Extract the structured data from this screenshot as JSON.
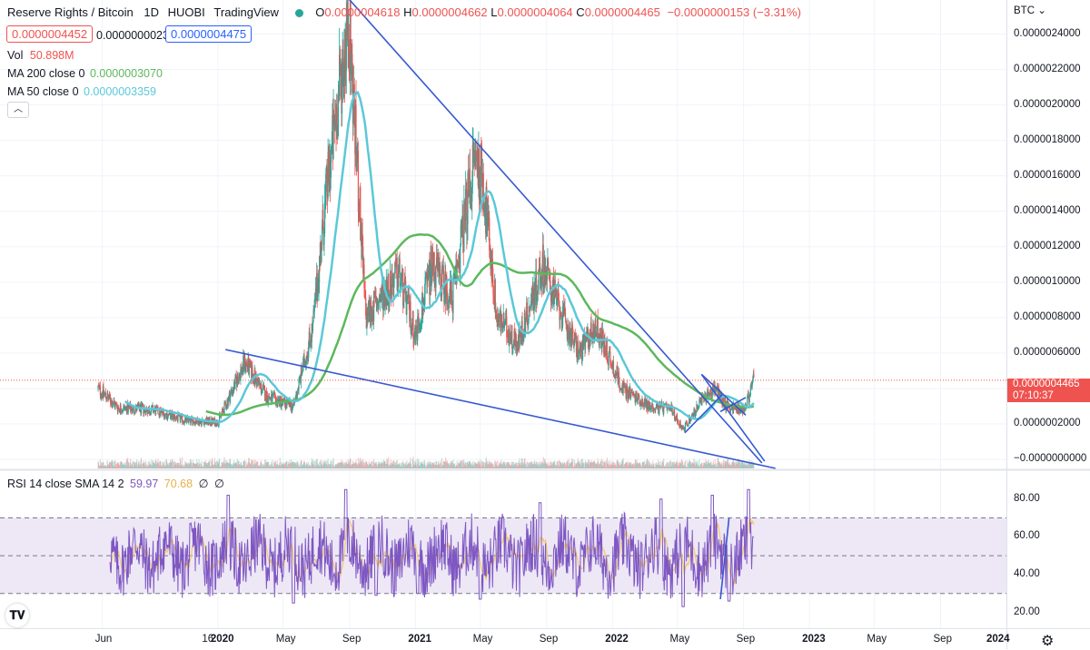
{
  "header": {
    "symbol": "Reserve Rights / Bitcoin",
    "interval": "1D",
    "exchange": "HUOBI",
    "source": "TradingView",
    "o_label": "O",
    "o_value": "0.0000004618",
    "h_label": "H",
    "h_value": "0.0000004662",
    "l_label": "L",
    "l_value": "0.0000004064",
    "c_label": "C",
    "c_value": "0.0000004465",
    "change": "−0.0000000153 (−3.31%)"
  },
  "price_boxes": {
    "bid": "0.0000004452",
    "spread": "0.0000000023",
    "ask": "0.0000004475"
  },
  "indicators": {
    "vol_label": "Vol",
    "vol_value": "50.898M",
    "ma200_label": "MA 200 close 0",
    "ma200_value": "0.0000003070",
    "ma50_label": "MA 50 close 0",
    "ma50_value": "0.0000003359",
    "rsi_label": "RSI 14 close SMA 14 2",
    "rsi_value": "59.97",
    "rsi_sma_value": "70.68",
    "rsi_extra1": "∅",
    "rsi_extra2": "∅"
  },
  "price_scale": {
    "currency": "BTC",
    "ticks": [
      "0.0000024000",
      "0.0000022000",
      "0.0000020000",
      "0.0000018000",
      "0.0000016000",
      "0.0000014000",
      "0.0000012000",
      "0.0000010000",
      "0.0000008000",
      "0.0000006000",
      "0.0000004000",
      "0.0000002000",
      "−0.0000000000"
    ],
    "last_price": "0.0000004465",
    "countdown": "07:10:37"
  },
  "rsi_scale": {
    "ticks": [
      "80.00",
      "60.00",
      "40.00",
      "20.00"
    ]
  },
  "time_axis": {
    "labels": [
      "Jun",
      "16",
      "2020",
      "May",
      "Sep",
      "2021",
      "May",
      "Sep",
      "2022",
      "May",
      "Sep",
      "2023",
      "May",
      "Sep",
      "2024"
    ]
  },
  "colors": {
    "up": "#26a69a",
    "down": "#ef5350",
    "ma200": "#5cb85c",
    "ma50": "#5bc8d8",
    "trendline": "#3559d1",
    "rsi": "#7e57c2",
    "rsi_sma": "#f5c86b",
    "rsi_band": "#ede7f6"
  },
  "chart_data": [
    {
      "type": "candlestick",
      "title": "Reserve Rights / Bitcoin",
      "ylim": [
        -2e-08,
        2.5e-06
      ],
      "x_range": [
        "2019-05-24",
        "2024-01-01"
      ],
      "close_path": [
        [
          "2019-05-24",
          4e-07
        ],
        [
          "2019-07-01",
          2.9e-07
        ],
        [
          "2019-09-01",
          2.8e-07
        ],
        [
          "2019-11-01",
          2.2e-07
        ],
        [
          "2020-01-01",
          2.1e-07
        ],
        [
          "2020-02-20",
          5.5e-07
        ],
        [
          "2020-04-01",
          3.5e-07
        ],
        [
          "2020-05-20",
          3e-07
        ],
        [
          "2020-06-25",
          7.5e-07
        ],
        [
          "2020-07-20",
          1.5e-06
        ],
        [
          "2020-08-30",
          2.5e-06
        ],
        [
          "2020-10-01",
          8e-07
        ],
        [
          "2020-12-01",
          1.05e-06
        ],
        [
          "2021-01-01",
          7e-07
        ],
        [
          "2021-02-01",
          1.1e-06
        ],
        [
          "2021-03-10",
          9e-07
        ],
        [
          "2021-04-20",
          1.7e-06
        ],
        [
          "2021-05-05",
          1.6e-06
        ],
        [
          "2021-06-01",
          8e-07
        ],
        [
          "2021-07-10",
          6.5e-07
        ],
        [
          "2021-08-25",
          1.1e-06
        ],
        [
          "2021-10-01",
          8e-07
        ],
        [
          "2021-11-01",
          6e-07
        ],
        [
          "2021-12-01",
          7.5e-07
        ],
        [
          "2022-01-20",
          4e-07
        ],
        [
          "2022-03-10",
          3e-07
        ],
        [
          "2022-04-20",
          2.8e-07
        ],
        [
          "2022-05-12",
          1.7e-07
        ],
        [
          "2022-06-20",
          3.5e-07
        ],
        [
          "2022-07-10",
          4e-07
        ],
        [
          "2022-08-01",
          3e-07
        ],
        [
          "2022-08-25",
          2.8e-07
        ],
        [
          "2022-09-05",
          3e-07
        ],
        [
          "2022-09-20",
          4.5e-07
        ]
      ],
      "ma50": {
        "name": "MA 50 close 0",
        "last": 3.359e-07
      },
      "ma200": {
        "name": "MA 200 close 0",
        "last": 3.07e-07
      },
      "trendlines": [
        {
          "from": [
            "2020-08-30",
            2.6e-06
          ],
          "to": [
            "2022-10-05",
            -2e-08
          ]
        },
        {
          "from": [
            "2020-01-15",
            6.2e-07
          ],
          "to": [
            "2022-10-30",
            -5e-08
          ]
        },
        {
          "from": [
            "2022-06-15",
            4.8e-07
          ],
          "to": [
            "2022-10-10",
            -1e-08
          ]
        },
        {
          "from": [
            "2022-05-15",
            1.5e-07
          ],
          "to": [
            "2022-07-25",
            3.7e-07
          ]
        },
        {
          "from": [
            "2022-06-15",
            4.8e-07
          ],
          "to": [
            "2022-09-05",
            2.5e-07
          ]
        },
        {
          "from": [
            "2022-07-20",
            2.7e-07
          ],
          "to": [
            "2022-09-05",
            3.5e-07
          ]
        }
      ]
    },
    {
      "type": "line",
      "title": "RSI 14 close SMA 14 2",
      "ylim": [
        15,
        88
      ],
      "bands": {
        "upper": 70,
        "middle": 50,
        "lower": 30
      },
      "series": [
        {
          "name": "RSI",
          "last": 59.97
        },
        {
          "name": "SMA",
          "last": 70.68
        }
      ],
      "key_points": [
        [
          "2020-01-20",
          82
        ],
        [
          "2020-05-20",
          25
        ],
        [
          "2020-08-25",
          85
        ],
        [
          "2020-10-20",
          29
        ],
        [
          "2021-01-05",
          30
        ],
        [
          "2021-05-01",
          27
        ],
        [
          "2021-08-20",
          78
        ],
        [
          "2022-04-01",
          80
        ],
        [
          "2022-05-12",
          23
        ],
        [
          "2022-07-05",
          82
        ],
        [
          "2022-08-05",
          26
        ],
        [
          "2022-09-10",
          86
        ],
        [
          "2022-09-20",
          60
        ]
      ]
    }
  ]
}
